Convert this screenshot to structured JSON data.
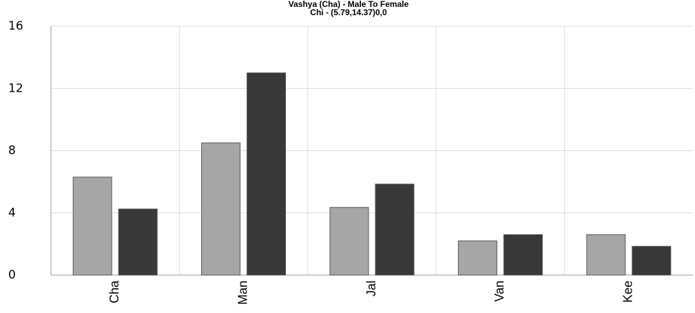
{
  "chart_data": {
    "type": "bar",
    "title": "Vashya (Cha) - Male To Female",
    "subtitle": "Chi - (5.79,14.37)0,0",
    "categories": [
      "Cha",
      "Man",
      "Jal",
      "Van",
      "Kee"
    ],
    "series": [
      {
        "color": "#a6a6a6",
        "values": [
          6.3,
          8.5,
          4.35,
          2.2,
          2.6
        ]
      },
      {
        "color": "#383838",
        "values": [
          4.25,
          13,
          5.85,
          2.6,
          1.85
        ]
      }
    ],
    "ylim": [
      0,
      16
    ],
    "yticks": [
      0,
      4,
      8,
      12,
      16
    ],
    "grid": true
  }
}
